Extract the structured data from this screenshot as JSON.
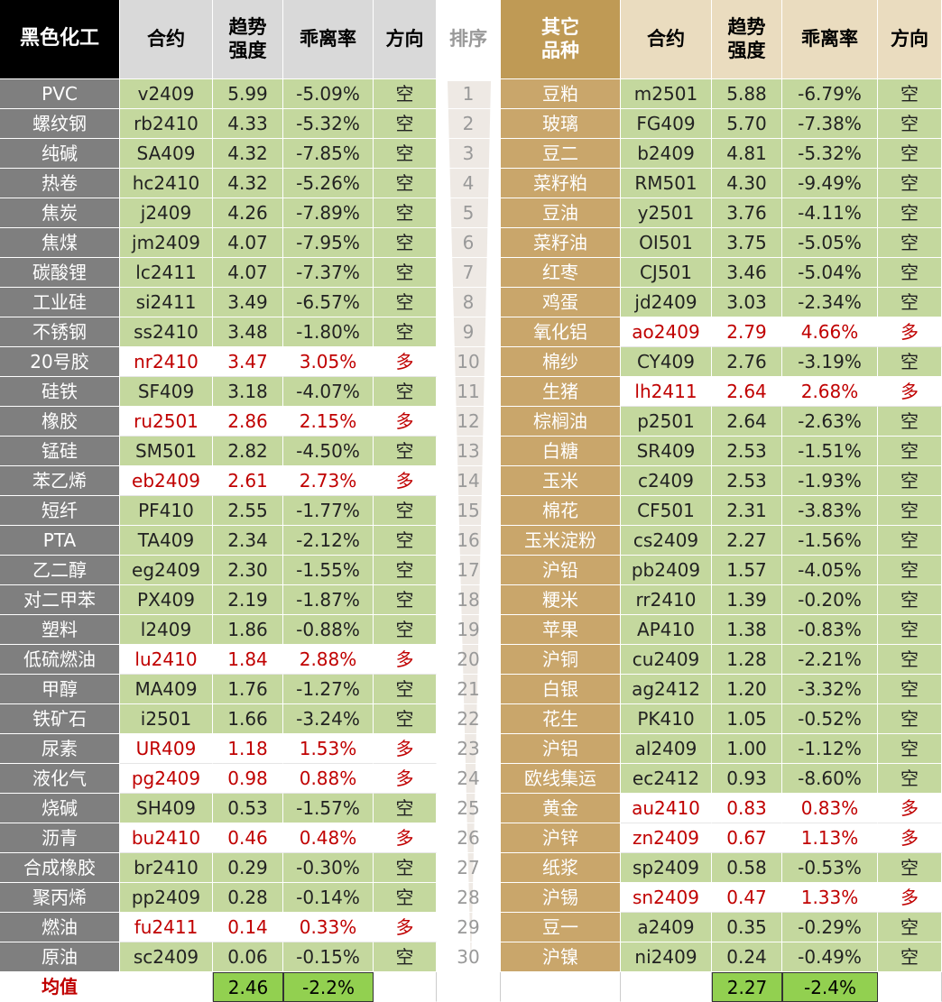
{
  "header": {
    "left": [
      "黑色化工",
      "合约",
      "趋势\n强度",
      "乖离率",
      "方向"
    ],
    "rank": "排序",
    "right": [
      "其它\n品种",
      "合约",
      "趋势\n强度",
      "乖离率",
      "方向"
    ]
  },
  "left_rows": [
    [
      "PVC",
      "v2409",
      "5.99",
      "-5.09%",
      "空"
    ],
    [
      "螺纹钢",
      "rb2410",
      "4.33",
      "-5.32%",
      "空"
    ],
    [
      "纯碱",
      "SA409",
      "4.32",
      "-7.85%",
      "空"
    ],
    [
      "热卷",
      "hc2410",
      "4.32",
      "-5.26%",
      "空"
    ],
    [
      "焦炭",
      "j2409",
      "4.26",
      "-7.89%",
      "空"
    ],
    [
      "焦煤",
      "jm2409",
      "4.07",
      "-7.95%",
      "空"
    ],
    [
      "碳酸锂",
      "lc2411",
      "4.07",
      "-7.37%",
      "空"
    ],
    [
      "工业硅",
      "si2411",
      "3.49",
      "-6.57%",
      "空"
    ],
    [
      "不锈钢",
      "ss2410",
      "3.48",
      "-1.80%",
      "空"
    ],
    [
      "20号胶",
      "nr2410",
      "3.47",
      "3.05%",
      "多"
    ],
    [
      "硅铁",
      "SF409",
      "3.18",
      "-4.07%",
      "空"
    ],
    [
      "橡胶",
      "ru2501",
      "2.86",
      "2.15%",
      "多"
    ],
    [
      "锰硅",
      "SM501",
      "2.82",
      "-4.50%",
      "空"
    ],
    [
      "苯乙烯",
      "eb2409",
      "2.61",
      "2.73%",
      "多"
    ],
    [
      "短纤",
      "PF410",
      "2.55",
      "-1.77%",
      "空"
    ],
    [
      "PTA",
      "TA409",
      "2.34",
      "-2.12%",
      "空"
    ],
    [
      "乙二醇",
      "eg2409",
      "2.30",
      "-1.55%",
      "空"
    ],
    [
      "对二甲苯",
      "PX409",
      "2.19",
      "-1.87%",
      "空"
    ],
    [
      "塑料",
      "l2409",
      "1.86",
      "-0.88%",
      "空"
    ],
    [
      "低硫燃油",
      "lu2410",
      "1.84",
      "2.88%",
      "多"
    ],
    [
      "甲醇",
      "MA409",
      "1.76",
      "-1.27%",
      "空"
    ],
    [
      "铁矿石",
      "i2501",
      "1.66",
      "-3.24%",
      "空"
    ],
    [
      "尿素",
      "UR409",
      "1.18",
      "1.53%",
      "多"
    ],
    [
      "液化气",
      "pg2409",
      "0.98",
      "0.88%",
      "多"
    ],
    [
      "烧碱",
      "SH409",
      "0.53",
      "-1.57%",
      "空"
    ],
    [
      "沥青",
      "bu2410",
      "0.46",
      "0.48%",
      "多"
    ],
    [
      "合成橡胶",
      "br2410",
      "0.29",
      "-0.30%",
      "空"
    ],
    [
      "聚丙烯",
      "pp2409",
      "0.28",
      "-0.14%",
      "空"
    ],
    [
      "燃油",
      "fu2411",
      "0.14",
      "0.33%",
      "多"
    ],
    [
      "原油",
      "sc2409",
      "0.06",
      "-0.15%",
      "空"
    ]
  ],
  "ranks": [
    1,
    2,
    3,
    4,
    5,
    6,
    7,
    8,
    9,
    10,
    11,
    12,
    13,
    14,
    15,
    16,
    17,
    18,
    19,
    20,
    21,
    22,
    23,
    24,
    25,
    26,
    27,
    28,
    29,
    30
  ],
  "right_rows": [
    [
      "豆粕",
      "m2501",
      "5.88",
      "-6.79%",
      "空"
    ],
    [
      "玻璃",
      "FG409",
      "5.70",
      "-7.38%",
      "空"
    ],
    [
      "豆二",
      "b2409",
      "4.81",
      "-5.32%",
      "空"
    ],
    [
      "菜籽粕",
      "RM501",
      "4.30",
      "-9.49%",
      "空"
    ],
    [
      "豆油",
      "y2501",
      "3.76",
      "-4.11%",
      "空"
    ],
    [
      "菜籽油",
      "OI501",
      "3.75",
      "-5.05%",
      "空"
    ],
    [
      "红枣",
      "CJ501",
      "3.46",
      "-5.04%",
      "空"
    ],
    [
      "鸡蛋",
      "jd2409",
      "3.03",
      "-2.34%",
      "空"
    ],
    [
      "氧化铝",
      "ao2409",
      "2.79",
      "4.66%",
      "多"
    ],
    [
      "棉纱",
      "CY409",
      "2.76",
      "-3.19%",
      "空"
    ],
    [
      "生猪",
      "lh2411",
      "2.64",
      "2.68%",
      "多"
    ],
    [
      "棕榈油",
      "p2501",
      "2.64",
      "-2.63%",
      "空"
    ],
    [
      "白糖",
      "SR409",
      "2.53",
      "-1.51%",
      "空"
    ],
    [
      "玉米",
      "c2409",
      "2.53",
      "-1.93%",
      "空"
    ],
    [
      "棉花",
      "CF501",
      "2.31",
      "-3.83%",
      "空"
    ],
    [
      "玉米淀粉",
      "cs2409",
      "2.27",
      "-1.56%",
      "空"
    ],
    [
      "沪铅",
      "pb2409",
      "1.57",
      "-4.05%",
      "空"
    ],
    [
      "粳米",
      "rr2410",
      "1.39",
      "-0.20%",
      "空"
    ],
    [
      "苹果",
      "AP410",
      "1.38",
      "-0.83%",
      "空"
    ],
    [
      "沪铜",
      "cu2409",
      "1.28",
      "-2.21%",
      "空"
    ],
    [
      "白银",
      "ag2412",
      "1.20",
      "-3.32%",
      "空"
    ],
    [
      "花生",
      "PK410",
      "1.05",
      "-0.52%",
      "空"
    ],
    [
      "沪铝",
      "al2409",
      "1.00",
      "-1.12%",
      "空"
    ],
    [
      "欧线集运",
      "ec2412",
      "0.93",
      "-8.60%",
      "空"
    ],
    [
      "黄金",
      "au2410",
      "0.83",
      "0.83%",
      "多"
    ],
    [
      "沪锌",
      "zn2409",
      "0.67",
      "1.13%",
      "多"
    ],
    [
      "纸浆",
      "sp2409",
      "0.58",
      "-0.53%",
      "空"
    ],
    [
      "沪锡",
      "sn2409",
      "0.47",
      "1.33%",
      "多"
    ],
    [
      "豆一",
      "a2409",
      "0.35",
      "-0.29%",
      "空"
    ],
    [
      "沪镍",
      "ni2409",
      "0.24",
      "-0.49%",
      "空"
    ]
  ],
  "footer": {
    "label": "均值",
    "left": [
      "2.46",
      "-2.2%"
    ],
    "right": [
      "2.27",
      "-2.4%"
    ]
  }
}
